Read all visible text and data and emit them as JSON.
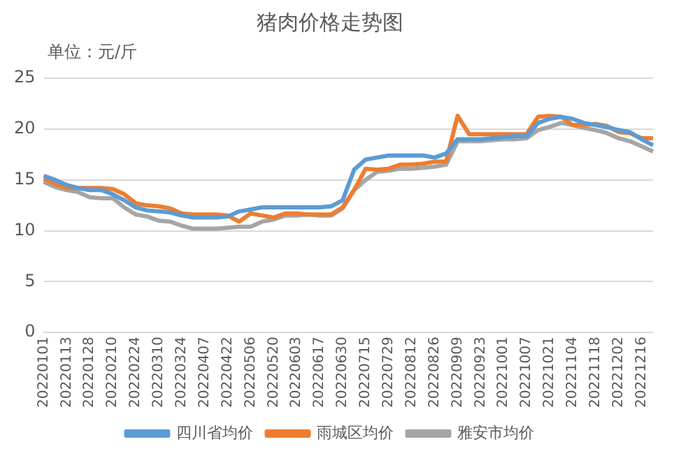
{
  "chart_data": {
    "type": "line",
    "title": "猪肉价格走势图",
    "annotations": [
      "单位：元/斤"
    ],
    "categories": [
      "20220101",
      null,
      "20220113",
      null,
      "20220128",
      null,
      "20220210",
      null,
      "20220224",
      null,
      "20220310",
      null,
      "20220324",
      null,
      "20220407",
      null,
      "20220422",
      null,
      "20220506",
      null,
      "20220520",
      null,
      "20220603",
      null,
      "20220617",
      null,
      "20220630",
      null,
      "20220715",
      null,
      "20220729",
      null,
      "20220812",
      null,
      "20220826",
      null,
      "20220909",
      null,
      "20220923",
      null,
      "20221001",
      null,
      "20221007",
      null,
      "20221021",
      null,
      "20221104",
      null,
      "20221118",
      null,
      "20221202",
      null,
      "20221216",
      null
    ],
    "series": [
      {
        "name": "四川省均价",
        "color": "#5b9bd5",
        "values": [
          15.4,
          15.0,
          14.5,
          14.2,
          14.0,
          14.0,
          13.6,
          13.0,
          12.3,
          12.0,
          11.9,
          11.8,
          11.5,
          11.3,
          11.3,
          11.3,
          11.4,
          11.9,
          12.1,
          12.3,
          12.3,
          12.3,
          12.3,
          12.3,
          12.3,
          12.4,
          13.0,
          16.0,
          17.0,
          17.2,
          17.4,
          17.4,
          17.4,
          17.4,
          17.2,
          17.6,
          19.0,
          19.0,
          19.0,
          19.1,
          19.2,
          19.3,
          19.3,
          20.6,
          21.0,
          21.2,
          21.0,
          20.6,
          20.4,
          20.2,
          19.9,
          19.7,
          19.0,
          18.4
        ]
      },
      {
        "name": "雨城区均价",
        "color": "#ed7d31",
        "values": [
          15.1,
          14.6,
          14.2,
          14.2,
          14.2,
          14.2,
          14.1,
          13.6,
          12.7,
          12.5,
          12.4,
          12.2,
          11.7,
          11.6,
          11.6,
          11.6,
          11.5,
          10.9,
          11.7,
          11.5,
          11.3,
          11.7,
          11.7,
          11.6,
          11.6,
          11.6,
          12.3,
          14.0,
          16.1,
          16.0,
          16.1,
          16.5,
          16.5,
          16.6,
          16.8,
          16.8,
          21.3,
          19.5,
          19.5,
          19.5,
          19.5,
          19.5,
          19.5,
          21.2,
          21.3,
          21.2,
          20.4,
          20.4,
          20.5,
          20.3,
          19.7,
          19.6,
          19.1,
          19.1
        ]
      },
      {
        "name": "雅安市均价",
        "color": "#a5a5a5",
        "values": [
          14.8,
          14.3,
          14.0,
          13.8,
          13.3,
          13.2,
          13.2,
          12.3,
          11.6,
          11.4,
          11.0,
          10.9,
          10.5,
          10.2,
          10.2,
          10.2,
          10.3,
          10.4,
          10.4,
          10.9,
          11.1,
          11.5,
          11.5,
          11.6,
          11.5,
          11.5,
          12.2,
          14.0,
          15.0,
          15.8,
          15.9,
          16.1,
          16.1,
          16.2,
          16.3,
          16.5,
          18.8,
          18.8,
          18.8,
          18.9,
          19.0,
          19.0,
          19.1,
          19.9,
          20.2,
          20.6,
          20.4,
          20.1,
          19.9,
          19.6,
          19.1,
          18.8,
          18.3,
          17.8
        ]
      }
    ],
    "ylim": [
      0,
      25
    ],
    "yticks": [
      0,
      5,
      10,
      15,
      20,
      25
    ],
    "grid": "y",
    "legend": "bottom",
    "marker": "none",
    "line_style": "solid"
  }
}
